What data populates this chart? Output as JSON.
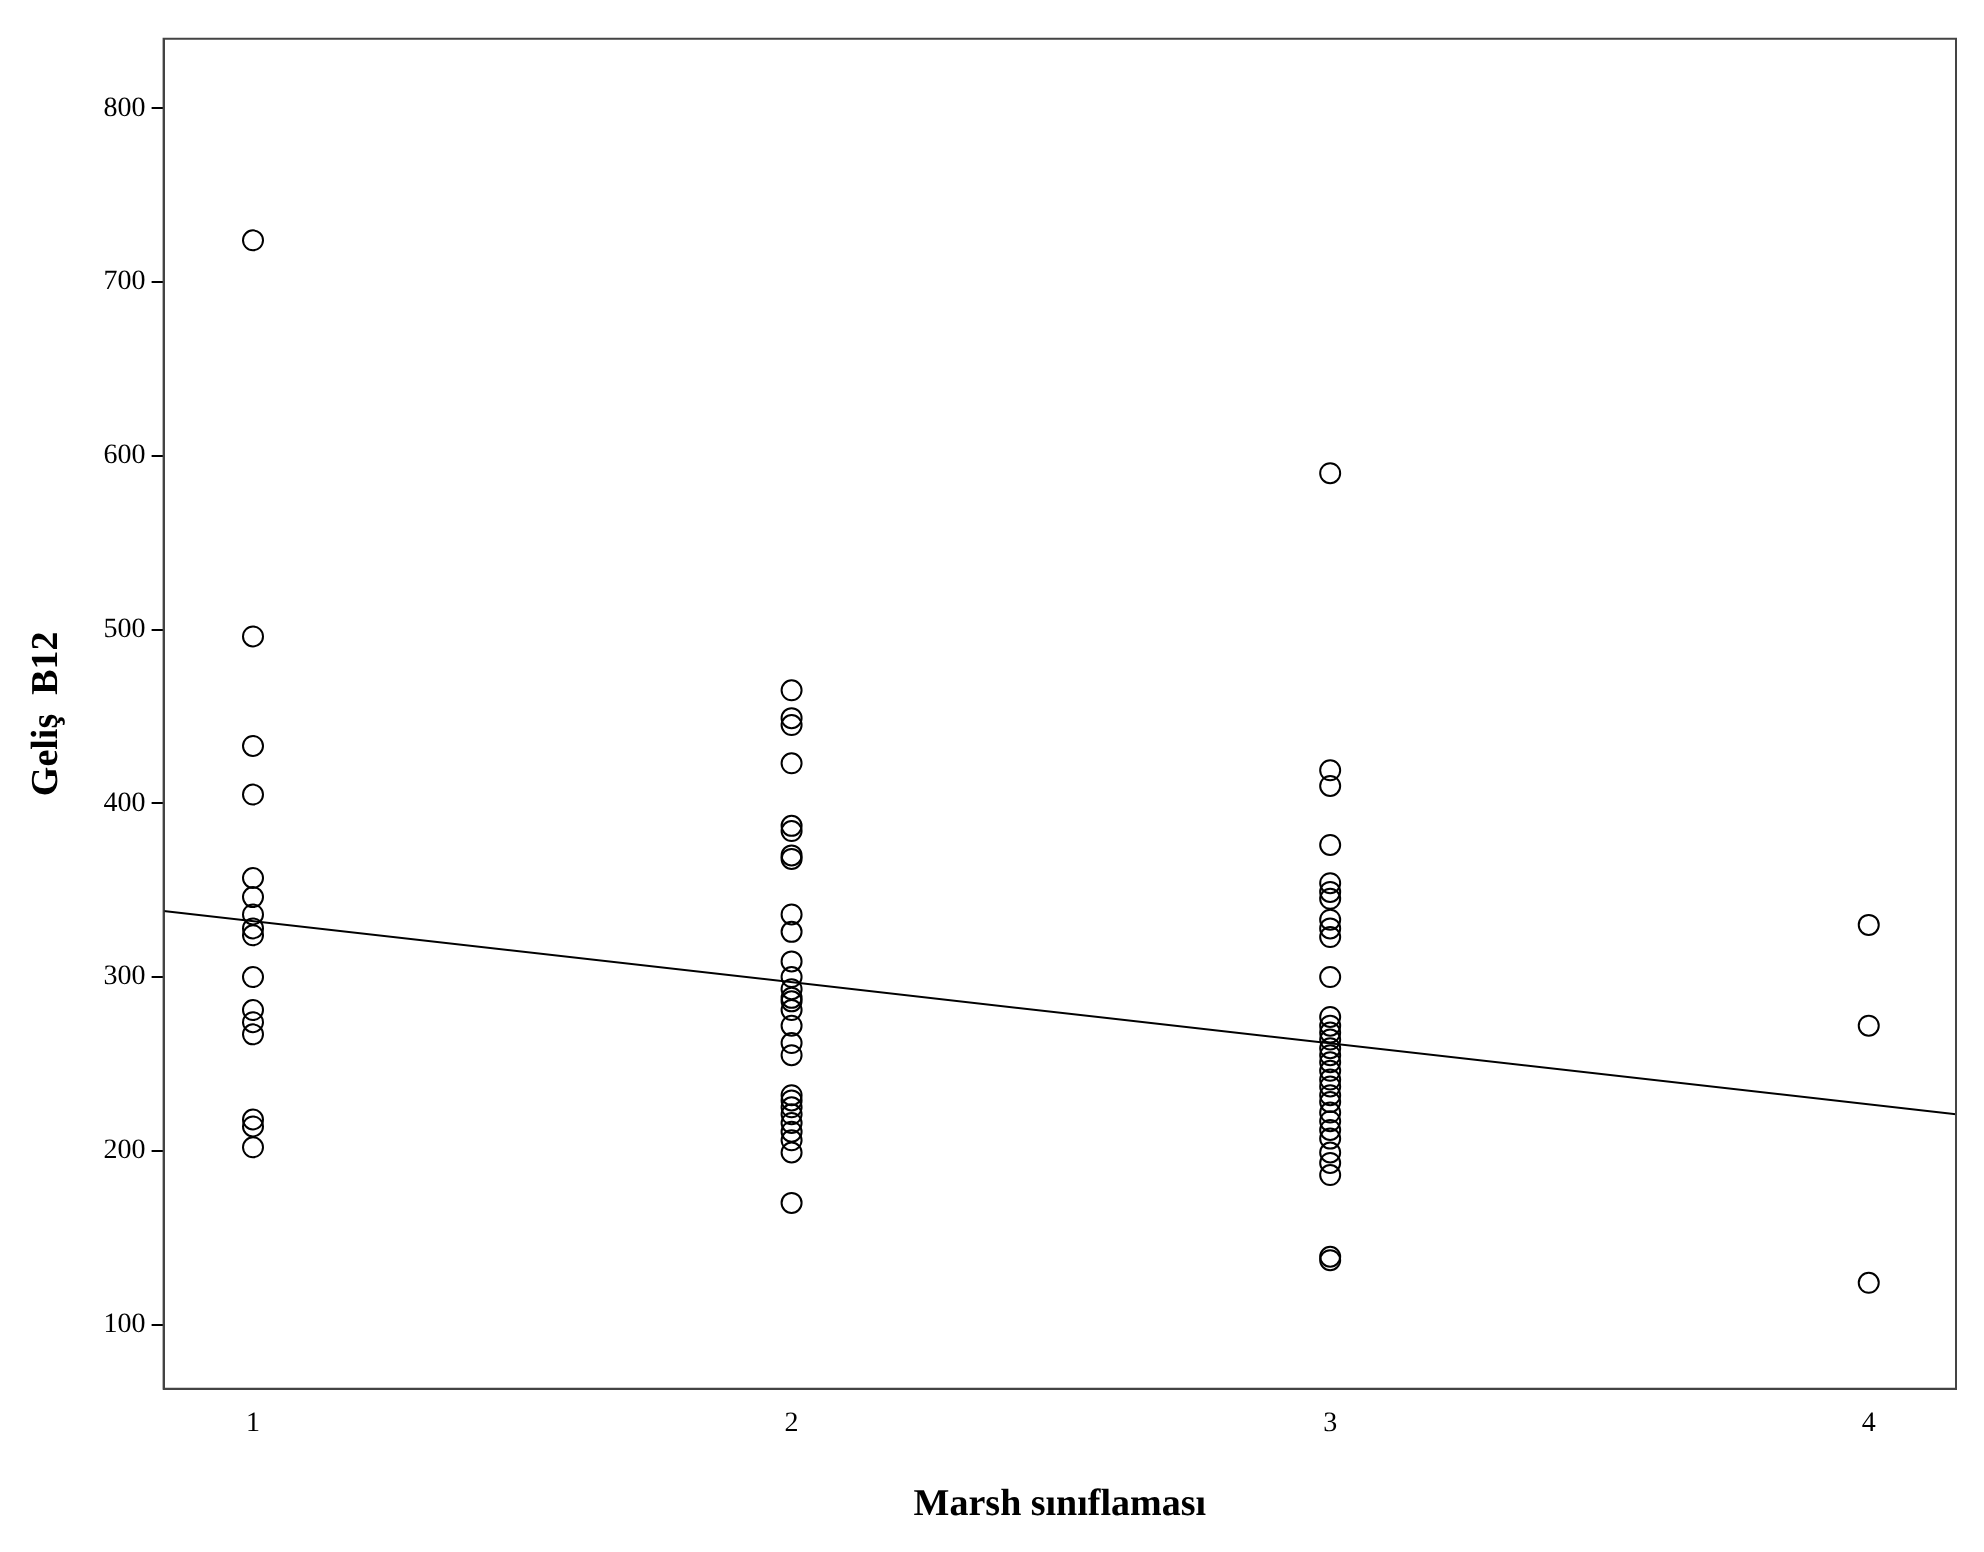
{
  "chart_data": {
    "type": "scatter",
    "xlabel": "Marsh sınıflaması",
    "ylabel": "Geliş  B12",
    "xlim": [
      0.834,
      4.162
    ],
    "ylim": [
      63,
      840
    ],
    "xticks": [
      1,
      2,
      3,
      4
    ],
    "yticks": [
      100,
      200,
      300,
      400,
      500,
      600,
      700,
      800
    ],
    "grid": false,
    "marker": "circle",
    "series": [
      {
        "color": "#000000",
        "x": [
          1,
          1,
          1,
          1,
          1,
          1,
          1,
          1,
          1,
          1,
          1,
          1,
          1,
          1,
          1,
          1
        ],
        "values": [
          724,
          496,
          433,
          405,
          357,
          346,
          336,
          328,
          324,
          300,
          281,
          274,
          267,
          218,
          214,
          202
        ]
      },
      {
        "color": "#000000",
        "x": [
          2,
          2,
          2,
          2,
          2,
          2,
          2,
          2,
          2,
          2,
          2,
          2,
          2,
          2,
          2,
          2,
          2,
          2,
          2,
          2,
          2,
          2,
          2,
          2,
          2,
          2,
          2,
          2
        ],
        "values": [
          465,
          449,
          445,
          423,
          387,
          384,
          370,
          368,
          336,
          326,
          309,
          300,
          293,
          288,
          286,
          281,
          272,
          262,
          255,
          232,
          229,
          225,
          221,
          216,
          211,
          206,
          199,
          170
        ]
      },
      {
        "color": "#000000",
        "x": [
          3,
          3,
          3,
          3,
          3,
          3,
          3,
          3,
          3,
          3,
          3,
          3,
          3,
          3,
          3,
          3,
          3,
          3,
          3,
          3,
          3,
          3,
          3,
          3,
          3,
          3,
          3,
          3,
          3,
          3,
          3,
          3
        ],
        "values": [
          590,
          419,
          410,
          376,
          354,
          349,
          345,
          333,
          328,
          323,
          300,
          277,
          272,
          268,
          264,
          259,
          255,
          251,
          246,
          241,
          237,
          232,
          228,
          222,
          217,
          212,
          207,
          199,
          193,
          186,
          139,
          137
        ]
      },
      {
        "color": "#000000",
        "x": [
          4,
          4,
          4
        ],
        "values": [
          330,
          272,
          124
        ]
      },
      {
        "type": "line",
        "color": "#000000",
        "marker": "none",
        "x": [
          0.834,
          4.162
        ],
        "values": [
          338,
          221
        ]
      }
    ]
  }
}
